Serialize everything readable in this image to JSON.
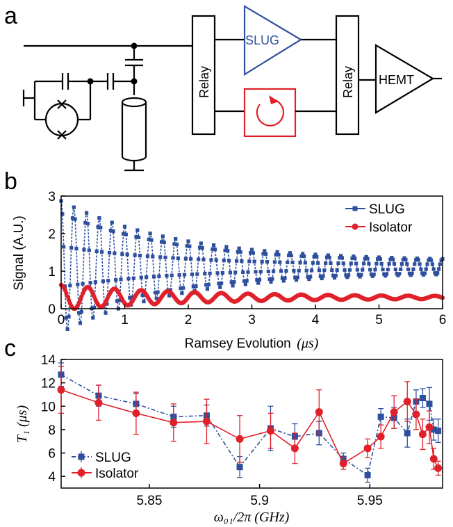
{
  "panels": {
    "a": "a",
    "b": "b",
    "c": "c"
  },
  "circuit": {
    "relay_left": "Relay",
    "relay_right": "Relay",
    "slug": "SLUG",
    "hemt": "HEMT",
    "colors": {
      "slug": "#2e4f9e",
      "isolator": "#e0202a",
      "wire": "#000000"
    }
  },
  "chart_data": [
    {
      "type": "line",
      "panel": "b",
      "xlabel": "Ramsey Evolution",
      "xlabel_unit": "(μs)",
      "ylabel": "Signal (A.U.)",
      "xlim": [
        0,
        6
      ],
      "ylim": [
        0,
        3
      ],
      "xticks": [
        "0",
        "1",
        "2",
        "3",
        "4",
        "5",
        "6"
      ],
      "yticks": [
        "0",
        "1",
        "2",
        "3"
      ],
      "legend_position": "top-right",
      "series": [
        {
          "name": "SLUG",
          "color": "#2e4f9e",
          "marker": "square",
          "model": {
            "period_us": 0.2,
            "offset": 1.12,
            "amplitude0": 1.6,
            "decay_us": 1.8,
            "amplitude_floor": 0.15
          }
        },
        {
          "name": "Isolator",
          "color": "#e0202a",
          "marker": "circle",
          "model": {
            "period_us": 0.42,
            "offset": 0.3,
            "amplitude0": 0.31,
            "decay_us": 2.2,
            "amplitude_floor": 0.02
          }
        }
      ]
    },
    {
      "type": "line",
      "panel": "c",
      "xlabel": "ω₀₁/2π (GHz)",
      "ylabel": "T₁ (μs)",
      "xlim": [
        5.81,
        5.983
      ],
      "ylim": [
        3,
        14
      ],
      "xticks": [
        "5.85",
        "5.9",
        "5.95"
      ],
      "xtick_values": [
        5.85,
        5.9,
        5.95
      ],
      "yticks": [
        "4",
        "6",
        "8",
        "10",
        "12",
        "14"
      ],
      "legend_position": "bottom-left",
      "series": [
        {
          "name": "SLUG",
          "color": "#2e4f9e",
          "marker": "square",
          "style": "dash-dot",
          "x": [
            5.81,
            5.827,
            5.844,
            5.861,
            5.876,
            5.891,
            5.905,
            5.916,
            5.927,
            5.938,
            5.949,
            5.955,
            5.961,
            5.967,
            5.971,
            5.974,
            5.977,
            5.979,
            5.981
          ],
          "y": [
            12.7,
            10.9,
            10.2,
            9.1,
            9.2,
            4.8,
            8.1,
            7.4,
            7.7,
            5.5,
            4.1,
            9.1,
            9.0,
            7.7,
            10.4,
            10.7,
            10.2,
            8.0,
            7.9
          ],
          "err": [
            1.0,
            0.9,
            0.9,
            0.9,
            0.9,
            0.9,
            1.9,
            1.1,
            1.0,
            0.5,
            0.6,
            0.7,
            0.9,
            1.2,
            1.0,
            0.8,
            1.4,
            0.9,
            1.0
          ]
        },
        {
          "name": "Isolator",
          "color": "#e0202a",
          "marker": "circle",
          "style": "solid",
          "x": [
            5.81,
            5.827,
            5.844,
            5.861,
            5.876,
            5.891,
            5.905,
            5.916,
            5.927,
            5.938,
            5.949,
            5.955,
            5.961,
            5.967,
            5.971,
            5.974,
            5.977,
            5.979,
            5.981
          ],
          "y": [
            11.4,
            10.3,
            9.4,
            8.6,
            8.7,
            7.2,
            7.9,
            6.4,
            9.5,
            5.1,
            6.4,
            7.4,
            9.5,
            10.4,
            9.3,
            7.6,
            8.2,
            5.5,
            4.7
          ],
          "err": [
            2.0,
            1.5,
            1.8,
            1.6,
            1.9,
            2.0,
            1.5,
            1.3,
            1.9,
            0.5,
            0.8,
            1.0,
            1.4,
            1.7,
            1.3,
            1.3,
            1.4,
            0.9,
            0.6
          ]
        }
      ]
    }
  ]
}
